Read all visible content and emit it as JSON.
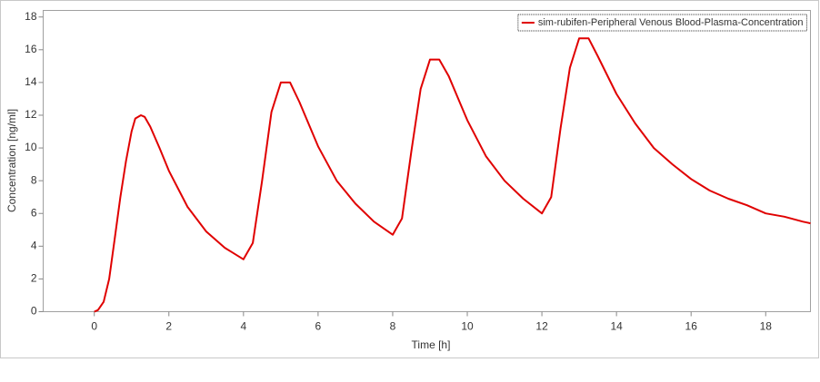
{
  "chart_data": {
    "type": "line",
    "x_label": "Time [h]",
    "y_label": "Concentration [ng/ml]",
    "x": [
      0,
      0.1,
      0.25,
      0.4,
      0.55,
      0.7,
      0.85,
      1.0,
      1.1,
      1.25,
      1.35,
      1.5,
      1.75,
      2,
      2.5,
      3,
      3.5,
      4,
      4.25,
      4.5,
      4.75,
      5,
      5.25,
      5.5,
      6,
      6.5,
      7,
      7.5,
      8,
      8.25,
      8.5,
      8.75,
      9,
      9.25,
      9.5,
      10,
      10.5,
      11,
      11.5,
      12,
      12.25,
      12.5,
      12.75,
      13,
      13.25,
      13.5,
      14,
      14.5,
      15,
      15.5,
      16,
      16.5,
      17,
      17.5,
      18,
      18.5,
      19,
      19.2
    ],
    "series": [
      {
        "name": "sim-rubifen-Peripheral Venous Blood-Plasma-Concentration",
        "color": "#e00000",
        "values": [
          0,
          0.1,
          0.6,
          2.0,
          4.5,
          7.0,
          9.2,
          11.0,
          11.8,
          12.0,
          11.9,
          11.3,
          10.0,
          8.6,
          6.4,
          4.9,
          3.9,
          3.2,
          4.2,
          8.0,
          12.2,
          14.0,
          14.0,
          12.8,
          10.1,
          8.0,
          6.6,
          5.5,
          4.7,
          5.7,
          9.8,
          13.6,
          15.4,
          15.4,
          14.4,
          11.7,
          9.5,
          8.0,
          6.9,
          6.0,
          7.0,
          11.2,
          14.9,
          16.7,
          16.7,
          15.6,
          13.3,
          11.5,
          10.0,
          9.0,
          8.1,
          7.4,
          6.9,
          6.5,
          6.0,
          5.8,
          5.5,
          5.4
        ]
      }
    ],
    "xlim": [
      -1.37,
      19.2
    ],
    "xticks": [
      0,
      2,
      4,
      6,
      8,
      10,
      12,
      14,
      16,
      18
    ],
    "ylim": [
      0,
      18.4
    ],
    "yticks": [
      0,
      2,
      4,
      6,
      8,
      10,
      12,
      14,
      16,
      18
    ],
    "legend": "top-right"
  }
}
